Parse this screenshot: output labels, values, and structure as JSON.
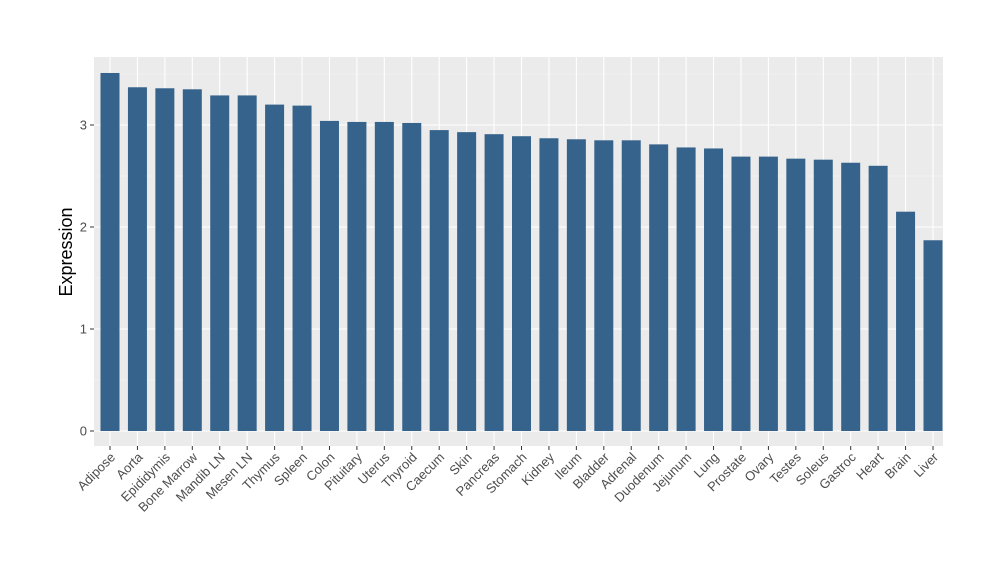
{
  "colors": {
    "bar": "#35638B",
    "panel": "#EBEBEB",
    "grid_major": "#FFFFFF",
    "grid_minor": "#F5F5F5",
    "axis_text": "#4D4D4D"
  },
  "chart_data": {
    "type": "bar",
    "title": "",
    "xlabel": "",
    "ylabel": "Expression",
    "ylim": [
      -0.1,
      3.6
    ],
    "yticks": [
      0,
      1,
      2,
      3
    ],
    "grid": true,
    "legend": "none",
    "categories": [
      "Adipose",
      "Aorta",
      "Epididymis",
      "Bone Marrow",
      "Mandib LN",
      "Mesen LN",
      "Thymus",
      "Spleen",
      "Colon",
      "Pituitary",
      "Uterus",
      "Thyroid",
      "Caecum",
      "Skin",
      "Pancreas",
      "Stomach",
      "Kidney",
      "Ileum",
      "Bladder",
      "Adrenal",
      "Duodenum",
      "Jejunum",
      "Lung",
      "Prostate",
      "Ovary",
      "Testes",
      "Soleus",
      "Gastroc",
      "Heart",
      "Brain",
      "Liver"
    ],
    "values": [
      3.51,
      3.37,
      3.36,
      3.35,
      3.29,
      3.29,
      3.2,
      3.19,
      3.04,
      3.03,
      3.03,
      3.02,
      2.95,
      2.93,
      2.91,
      2.89,
      2.87,
      2.86,
      2.85,
      2.85,
      2.81,
      2.78,
      2.77,
      2.69,
      2.69,
      2.67,
      2.66,
      2.63,
      2.6,
      2.15,
      1.87
    ]
  }
}
